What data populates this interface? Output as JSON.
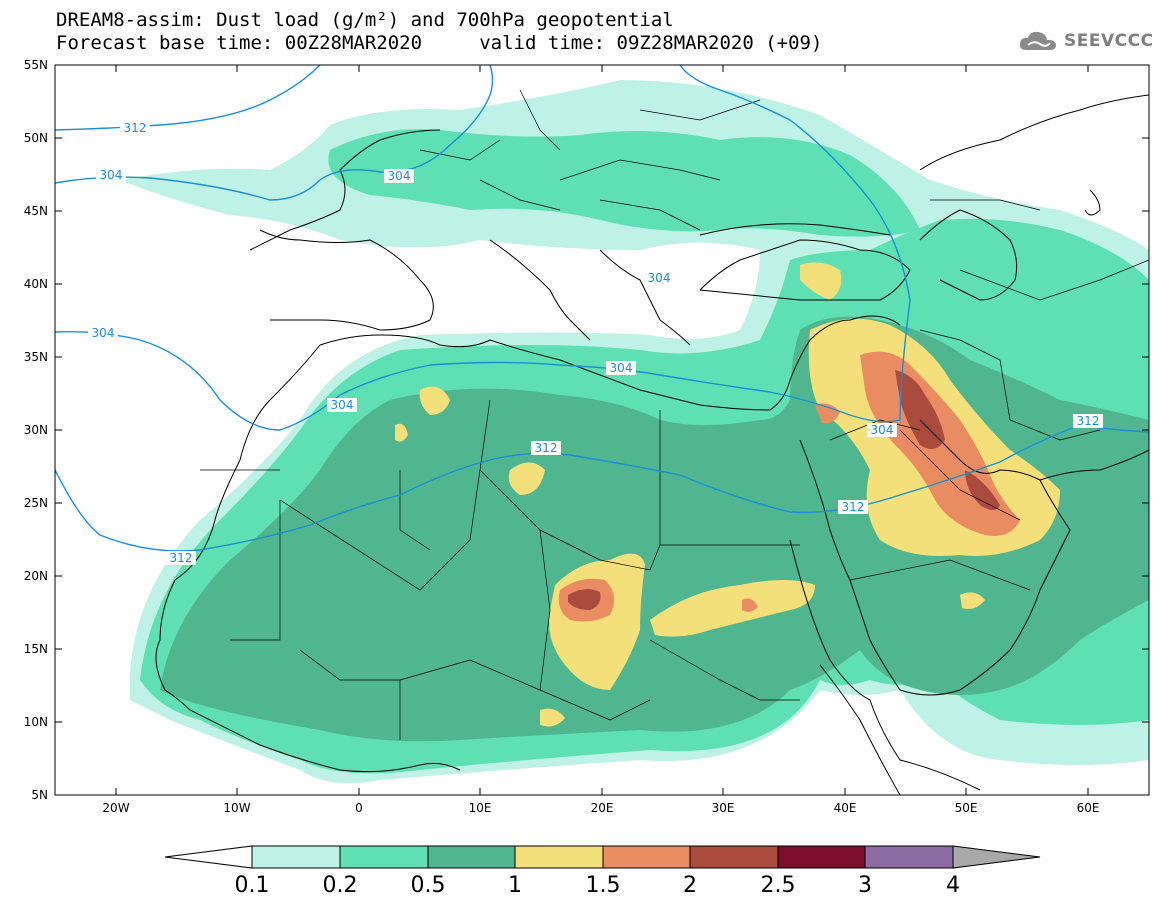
{
  "header": {
    "title_line1": "DREAM8-assim: Dust load (g/m²) and 700hPa geopotential",
    "title_line2": "Forecast base time: 00Z28MAR2020     valid time: 09Z28MAR2020 (+09)",
    "logo_text": "SEEVCCC",
    "logo_icon": "cloud-icon"
  },
  "axes": {
    "lat_labels": [
      "55N",
      "50N",
      "45N",
      "40N",
      "35N",
      "30N",
      "25N",
      "20N",
      "15N",
      "10N",
      "5N"
    ],
    "lon_labels": [
      "20W",
      "10W",
      "0",
      "10E",
      "20E",
      "30E",
      "40E",
      "50E",
      "60E"
    ],
    "lat_range": [
      5,
      55
    ],
    "lon_range": [
      -25,
      65
    ]
  },
  "colorbar": {
    "labels": [
      "0.1",
      "0.2",
      "0.5",
      "1",
      "1.5",
      "2",
      "2.5",
      "3",
      "4"
    ],
    "colors": [
      "#bff2e6",
      "#5ee0b4",
      "#4fb68f",
      "#f4e07a",
      "#e98c62",
      "#ab4b3d",
      "#7d0e2d",
      "#8c6aa2"
    ],
    "under_color": "#ffffff",
    "over_color": "#a8a8a8"
  },
  "contours": {
    "color": "#1a8fd6",
    "labels": [
      "312",
      "304",
      "304",
      "304",
      "304",
      "304",
      "312",
      "312",
      "312",
      "304",
      "312",
      "304"
    ]
  }
}
